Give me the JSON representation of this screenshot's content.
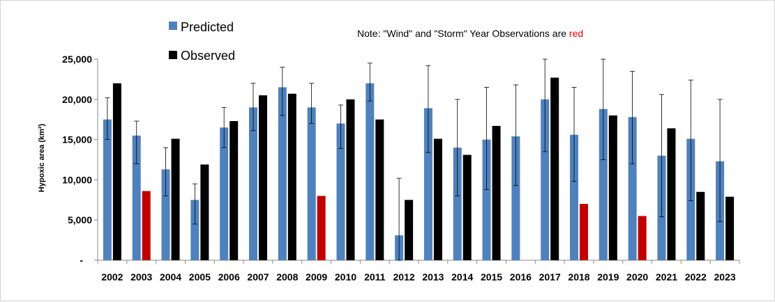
{
  "chart_data": {
    "type": "bar",
    "ylabel": "Hypoxic area (km²)",
    "ylim": [
      0,
      25000
    ],
    "yticks": [
      0,
      5000,
      10000,
      15000,
      20000,
      25000
    ],
    "ytick_labels": [
      "-",
      "5,000",
      "10,000",
      "15,000",
      "20,000",
      "25,000"
    ],
    "grid": false,
    "legend_position": "top-left",
    "note": {
      "prefix": "Note: \"Wind\" and \"Storm\" Year Observations are ",
      "highlight": "red"
    },
    "categories": [
      "2002",
      "2003",
      "2004",
      "2005",
      "2006",
      "2007",
      "2008",
      "2009",
      "2010",
      "2011",
      "2012",
      "2013",
      "2014",
      "2015",
      "2016",
      "2017",
      "2018",
      "2019",
      "2020",
      "2021",
      "2022",
      "2023"
    ],
    "series": [
      {
        "name": "Predicted",
        "color": "#4f81bd",
        "values": [
          17500,
          15500,
          11300,
          7500,
          16500,
          19000,
          21500,
          19000,
          17000,
          22000,
          3100,
          18900,
          14000,
          15000,
          15400,
          20000,
          15600,
          18800,
          17800,
          13000,
          15100,
          12300
        ],
        "error_low": [
          15000,
          12000,
          8000,
          4500,
          14000,
          16100,
          18000,
          17000,
          13900,
          19800,
          0,
          13400,
          8000,
          8800,
          9300,
          13500,
          9800,
          12500,
          12000,
          5400,
          7400,
          4800
        ],
        "error_high": [
          20200,
          17300,
          14000,
          9500,
          19000,
          22000,
          24000,
          22000,
          19300,
          24500,
          10200,
          24200,
          20000,
          21500,
          21800,
          25000,
          21500,
          25000,
          23500,
          20600,
          22400,
          20000
        ]
      },
      {
        "name": "Observed",
        "color": "#000000",
        "values": [
          22000,
          8600,
          15100,
          11900,
          17300,
          20500,
          20700,
          8000,
          20000,
          17500,
          7500,
          15100,
          13100,
          16700,
          null,
          22700,
          7000,
          18000,
          5500,
          16400,
          8500,
          7900
        ]
      }
    ],
    "wind_storm_years": [
      "2003",
      "2009",
      "2018",
      "2020"
    ],
    "wind_storm_color": "#c00000"
  }
}
